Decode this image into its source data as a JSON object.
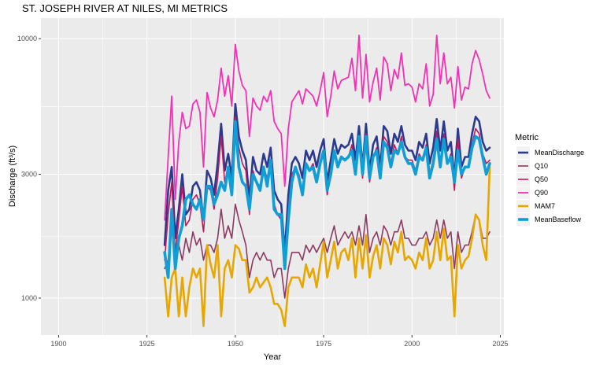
{
  "chart_data": {
    "type": "line",
    "title": "ST. JOSEPH RIVER AT NILES, MI  METRICS",
    "xlabel": "Year",
    "ylabel": "Discharge (ft³/s)",
    "xlim": [
      1895,
      2026
    ],
    "ylim": [
      720,
      12000
    ],
    "y_scale": "log",
    "x_ticks": [
      1900,
      1925,
      1950,
      1975,
      2000,
      2025
    ],
    "y_ticks": [
      1000,
      3000,
      10000
    ],
    "grid": true,
    "legend": {
      "title": "Metric",
      "placement": "right"
    },
    "x": [
      1930,
      1931,
      1932,
      1933,
      1934,
      1935,
      1936,
      1937,
      1938,
      1939,
      1940,
      1941,
      1942,
      1943,
      1944,
      1945,
      1946,
      1947,
      1948,
      1949,
      1950,
      1951,
      1952,
      1953,
      1954,
      1955,
      1956,
      1957,
      1958,
      1959,
      1960,
      1961,
      1962,
      1963,
      1964,
      1965,
      1966,
      1967,
      1968,
      1969,
      1970,
      1971,
      1972,
      1973,
      1974,
      1975,
      1976,
      1977,
      1978,
      1979,
      1980,
      1981,
      1982,
      1983,
      1984,
      1985,
      1986,
      1987,
      1988,
      1989,
      1990,
      1991,
      1992,
      1993,
      1994,
      1995,
      1996,
      1997,
      1998,
      1999,
      2000,
      2001,
      2002,
      2003,
      2004,
      2005,
      2006,
      2007,
      2008,
      2009,
      2010,
      2011,
      2012,
      2013,
      2014,
      2015,
      2016,
      2017,
      2018,
      2019,
      2020,
      2021,
      2022
    ],
    "series": [
      {
        "name": "MeanDischarge",
        "color": "#2b3a8f",
        "width": 2.6,
        "values": [
          1600,
          2600,
          3200,
          1700,
          2200,
          3000,
          2100,
          2200,
          2700,
          2800,
          2600,
          2000,
          3100,
          2900,
          2500,
          3300,
          4700,
          3100,
          3600,
          2900,
          5600,
          4200,
          3700,
          3400,
          2400,
          3500,
          3100,
          3000,
          3600,
          3200,
          3800,
          2600,
          2400,
          2300,
          1500,
          2500,
          3300,
          3500,
          3300,
          2900,
          3700,
          3400,
          3700,
          3200,
          3700,
          4100,
          2800,
          3400,
          4100,
          3600,
          3900,
          3800,
          3900,
          4300,
          3400,
          4600,
          3200,
          4700,
          3100,
          3900,
          4200,
          3200,
          4600,
          4400,
          3600,
          4300,
          4000,
          4600,
          3900,
          3700,
          3700,
          3400,
          4000,
          3800,
          4300,
          3300,
          3800,
          4900,
          3700,
          4800,
          3700,
          4000,
          2900,
          4500,
          3200,
          3500,
          3500,
          4300,
          5000,
          4800,
          4000,
          3700,
          3800
        ]
      },
      {
        "name": "Q10",
        "color": "#8b3a62",
        "width": 1.6,
        "values": [
          1300,
          1400,
          2000,
          1300,
          1600,
          1400,
          1700,
          1500,
          1800,
          1600,
          1700,
          1400,
          1600,
          1600,
          1500,
          1700,
          2200,
          1700,
          1900,
          1700,
          2300,
          2000,
          1800,
          1600,
          1200,
          1400,
          1500,
          1400,
          1500,
          1400,
          1400,
          1200,
          1300,
          1300,
          1000,
          1300,
          1500,
          1500,
          1500,
          1400,
          1600,
          1500,
          1600,
          1500,
          1600,
          1700,
          1500,
          1700,
          1900,
          1600,
          1700,
          1800,
          1700,
          1800,
          1600,
          1900,
          1600,
          2100,
          1500,
          1700,
          1800,
          1600,
          1900,
          1800,
          1600,
          1800,
          1800,
          2000,
          1700,
          1700,
          1600,
          1600,
          1700,
          1700,
          1800,
          1600,
          1700,
          2000,
          1700,
          2000,
          1700,
          1800,
          1300,
          1800,
          1500,
          1600,
          1600,
          1800,
          2100,
          2000,
          1700,
          1700,
          1800
        ]
      },
      {
        "name": "Q50",
        "color": "#c2185b",
        "width": 1.6,
        "values": [
          1400,
          2100,
          2800,
          1500,
          2000,
          2700,
          1900,
          2000,
          2400,
          2500,
          2300,
          1800,
          2700,
          2600,
          2200,
          2900,
          4200,
          2800,
          3200,
          2600,
          5000,
          3800,
          3300,
          3100,
          2100,
          3100,
          2800,
          2700,
          3200,
          2900,
          3400,
          2300,
          2100,
          2000,
          1300,
          2200,
          3000,
          3200,
          3000,
          2600,
          3300,
          3100,
          3300,
          2900,
          3300,
          3700,
          2500,
          3100,
          3700,
          3300,
          3500,
          3400,
          3500,
          3900,
          3100,
          4200,
          2900,
          4300,
          2800,
          3500,
          3800,
          2900,
          4200,
          4000,
          3300,
          3900,
          3600,
          4200,
          3500,
          3400,
          3400,
          3100,
          3600,
          3400,
          3900,
          3000,
          3400,
          4400,
          3300,
          4300,
          3300,
          3600,
          2600,
          4100,
          2900,
          3200,
          3200,
          3900,
          4500,
          4300,
          3600,
          3300,
          3400
        ]
      },
      {
        "name": "Q90",
        "color": "#f032b4",
        "width": 1.8,
        "values": [
          2000,
          3500,
          6000,
          2400,
          4000,
          5200,
          4500,
          4600,
          5600,
          5800,
          5200,
          3200,
          6200,
          5400,
          5000,
          5800,
          7700,
          6000,
          7200,
          5500,
          9500,
          7500,
          6600,
          6300,
          4200,
          5900,
          5500,
          5300,
          6000,
          5700,
          6300,
          4800,
          4500,
          4300,
          2700,
          4500,
          5700,
          6000,
          6300,
          5600,
          6400,
          6200,
          6000,
          5500,
          6300,
          7400,
          5000,
          6000,
          7500,
          6400,
          6900,
          7000,
          7100,
          8400,
          6300,
          10300,
          5900,
          8700,
          5700,
          6800,
          7700,
          5800,
          8500,
          8000,
          6300,
          7600,
          7000,
          8800,
          6600,
          6700,
          6500,
          5700,
          6700,
          6400,
          8000,
          5500,
          6100,
          10300,
          6700,
          8800,
          6700,
          7100,
          5400,
          7800,
          5800,
          6500,
          6400,
          8000,
          9000,
          8300,
          7300,
          6300,
          5900
        ]
      },
      {
        "name": "MAM7",
        "color": "#e6a700",
        "width": 2.6,
        "values": [
          1200,
          850,
          1200,
          1300,
          850,
          1200,
          850,
          1100,
          1300,
          1200,
          1300,
          780,
          1600,
          1350,
          1200,
          1600,
          850,
          1300,
          1400,
          1200,
          1600,
          1550,
          1400,
          1400,
          1050,
          1100,
          1200,
          1100,
          1150,
          1200,
          1100,
          950,
          950,
          900,
          780,
          1100,
          1200,
          1200,
          1200,
          1100,
          1350,
          1200,
          1300,
          1100,
          1350,
          1650,
          1200,
          1400,
          1650,
          1300,
          1500,
          1550,
          1400,
          1700,
          1200,
          1700,
          1300,
          1750,
          1200,
          1450,
          1600,
          1300,
          1700,
          1600,
          1350,
          1650,
          1500,
          1800,
          1400,
          1450,
          1400,
          1300,
          1500,
          1400,
          1700,
          1300,
          1400,
          1800,
          1400,
          1850,
          1400,
          1450,
          850,
          1600,
          1300,
          1400,
          1450,
          1700,
          2100,
          2000,
          1600,
          1400,
          3200
        ]
      },
      {
        "name": "MeanBaseflow",
        "color": "#0f9ed5",
        "width": 3.6,
        "values": [
          1500,
          1200,
          2200,
          1300,
          1700,
          1900,
          2400,
          2500,
          2300,
          2200,
          2400,
          2000,
          2700,
          2700,
          2300,
          2500,
          2800,
          2600,
          3200,
          2500,
          4800,
          3200,
          2800,
          2700,
          2200,
          3000,
          2800,
          2600,
          3200,
          2700,
          3400,
          2200,
          2100,
          2100,
          1300,
          2000,
          2800,
          3200,
          2900,
          2500,
          3300,
          3100,
          3200,
          2800,
          3300,
          3700,
          2600,
          3000,
          3700,
          3200,
          3500,
          3400,
          3500,
          3700,
          3000,
          4200,
          3000,
          4200,
          2900,
          3500,
          3700,
          2900,
          4000,
          3800,
          3200,
          3700,
          3600,
          4000,
          3500,
          3300,
          3300,
          3000,
          3500,
          3400,
          3800,
          2900,
          3300,
          4100,
          3200,
          4100,
          3300,
          3500,
          2800,
          3700,
          3000,
          3200,
          3200,
          3800,
          4200,
          4100,
          3500,
          3000,
          3300
        ]
      }
    ]
  }
}
